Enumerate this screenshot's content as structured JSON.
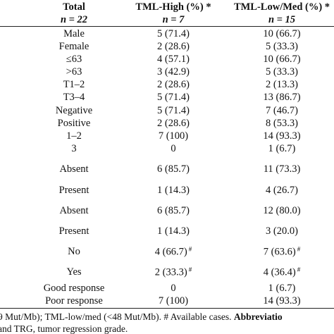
{
  "header": [
    {
      "line1": "Total",
      "line2": "n = 22"
    },
    {
      "line1": "TML-High (%) *",
      "line2": "n = 7"
    },
    {
      "line1": "TML-Low/Med (%) *",
      "line2": "n = 15"
    }
  ],
  "rows": [
    {
      "label": "Male",
      "high": "5 (71.4)",
      "low": "10 (66.7)"
    },
    {
      "label": "Female",
      "high": "2 (28.6)",
      "low": "5 (33.3)"
    },
    {
      "label": "≤63",
      "high": "4 (57.1)",
      "low": "10 (66.7)"
    },
    {
      "label": ">63",
      "high": "3 (42.9)",
      "low": "5 (33.3)"
    },
    {
      "label": "T1–2",
      "high": "2 (28.6)",
      "low": "2 (13.3)"
    },
    {
      "label": "T3–4",
      "high": "5 (71.4)",
      "low": "13 (86.7)"
    },
    {
      "label": "Negative",
      "high": "5 (71.4)",
      "low": "7 (46.7)"
    },
    {
      "label": "Positive",
      "high": "2 (28.6)",
      "low": "8 (53.3)"
    },
    {
      "label": "1–2",
      "high": "7 (100)",
      "low": "14 (93.3)"
    },
    {
      "label": "3",
      "high": "0",
      "low": "1 (6.7)"
    },
    {
      "label": "Absent",
      "high": "6 (85.7)",
      "low": "11 (73.3)"
    },
    {
      "label": "Present",
      "high": "1 (14.3)",
      "low": "4 (26.7)"
    },
    {
      "label": "Absent",
      "high": "6 (85.7)",
      "low": "12 (80.0)"
    },
    {
      "label": "Present",
      "high": "1 (14.3)",
      "low": "3 (20.0)"
    },
    {
      "label": "No",
      "high": "4 (66.7)",
      "high_note": "#",
      "low": "7 (63.6)",
      "low_note": "#"
    },
    {
      "label": "Yes",
      "high": "2 (33.3)",
      "high_note": "#",
      "low": "4 (36.4)",
      "low_note": "#"
    },
    {
      "label": "Good response",
      "high": "0",
      "low": "1 (6.7)"
    },
    {
      "label": "Poor response",
      "high": "7 (100)",
      "low": "14 (93.3)"
    }
  ],
  "footer": {
    "line1": "9 Mut/Mb); TML-low/med (<48 Mut/Mb). # Available cases.",
    "line1_bold": "Abbreviatio",
    "line2": "and TRG, tumor regression grade."
  }
}
